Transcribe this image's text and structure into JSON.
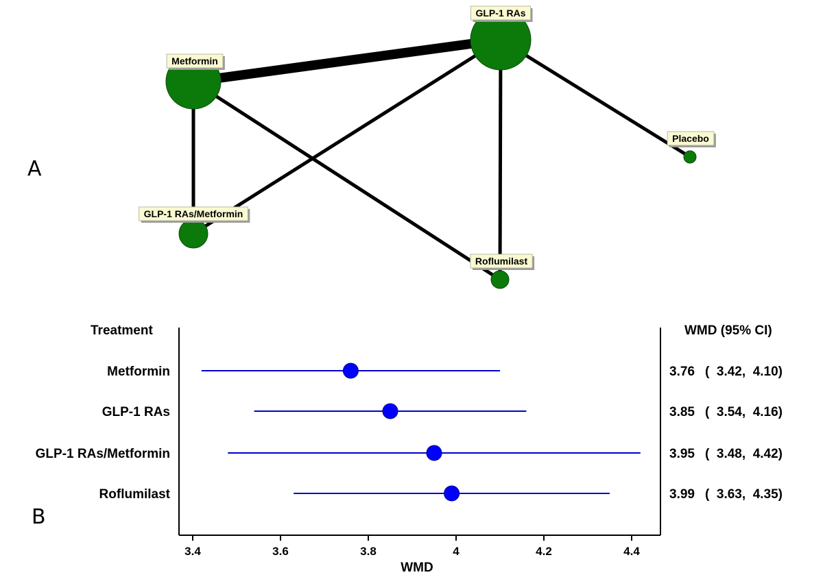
{
  "panels": {
    "a": "A",
    "b": "B"
  },
  "network": {
    "nodes": [
      {
        "id": "metformin",
        "label": "Metformin",
        "size": 40
      },
      {
        "id": "glp1",
        "label": "GLP-1 RAs",
        "size": 44
      },
      {
        "id": "placebo",
        "label": "Placebo",
        "size": 9
      },
      {
        "id": "glp1met",
        "label": "GLP-1 RAs/Metformin",
        "size": 21
      },
      {
        "id": "roflumilast",
        "label": "Roflumilast",
        "size": 13
      }
    ],
    "edges": [
      {
        "from": "metformin",
        "to": "glp1",
        "weight": 14
      },
      {
        "from": "metformin",
        "to": "glp1met",
        "weight": 5
      },
      {
        "from": "metformin",
        "to": "roflumilast",
        "weight": 5
      },
      {
        "from": "glp1",
        "to": "glp1met",
        "weight": 5
      },
      {
        "from": "glp1",
        "to": "roflumilast",
        "weight": 5
      },
      {
        "from": "glp1",
        "to": "placebo",
        "weight": 5
      }
    ]
  },
  "chart_data": {
    "type": "forest",
    "column_headers": {
      "treatment": "Treatment",
      "effect": "WMD (95% CI)"
    },
    "xlabel": "WMD",
    "xlim": [
      3.4,
      4.45
    ],
    "xticks": [
      3.4,
      3.6,
      3.8,
      4,
      4.2,
      4.4
    ],
    "xtick_labels": [
      "3.4",
      "3.6",
      "3.8",
      "4",
      "4.2",
      "4.4"
    ],
    "rows": [
      {
        "treatment": "Metformin",
        "wmd": 3.76,
        "lower": 3.42,
        "upper": 4.1,
        "estimate_text": "3.76",
        "ci_text": "(  3.42,  4.10)"
      },
      {
        "treatment": "GLP-1 RAs",
        "wmd": 3.85,
        "lower": 3.54,
        "upper": 4.16,
        "estimate_text": "3.85",
        "ci_text": "(  3.54,  4.16)"
      },
      {
        "treatment": "GLP-1 RAs/Metformin",
        "wmd": 3.95,
        "lower": 3.48,
        "upper": 4.42,
        "estimate_text": "3.95",
        "ci_text": "(  3.48,  4.42)"
      },
      {
        "treatment": "Roflumilast",
        "wmd": 3.99,
        "lower": 3.63,
        "upper": 4.35,
        "estimate_text": "3.99",
        "ci_text": "(  3.63,  4.35)"
      }
    ]
  }
}
